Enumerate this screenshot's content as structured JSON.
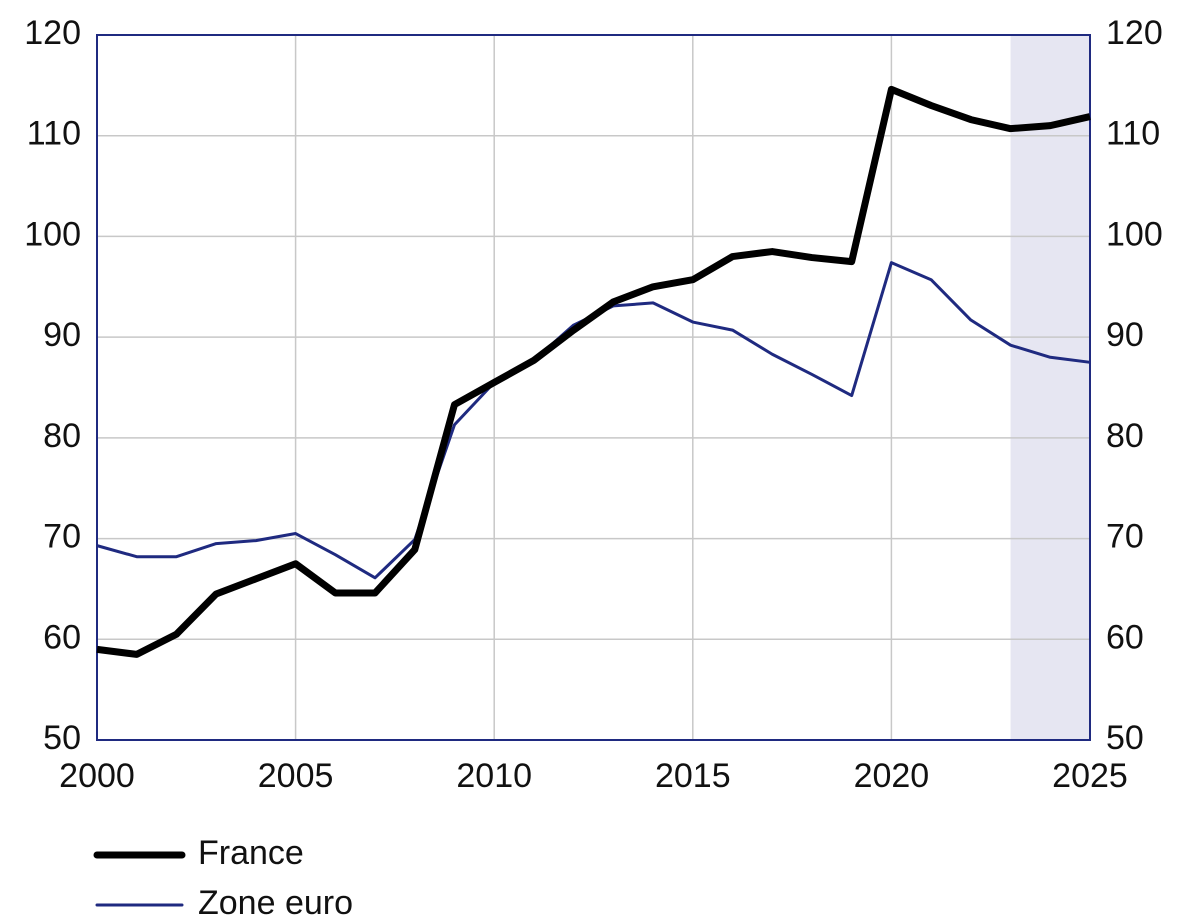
{
  "chart_data": {
    "type": "line",
    "x": [
      2000,
      2001,
      2002,
      2003,
      2004,
      2005,
      2006,
      2007,
      2008,
      2009,
      2010,
      2011,
      2012,
      2013,
      2014,
      2015,
      2016,
      2017,
      2018,
      2019,
      2020,
      2021,
      2022,
      2023,
      2024,
      2025
    ],
    "series": [
      {
        "name": "France",
        "color": "#000000",
        "width": 7,
        "values": [
          59,
          58.5,
          60.5,
          64.5,
          66,
          67.5,
          64.6,
          64.6,
          68.9,
          83.3,
          85.5,
          87.7,
          90.7,
          93.5,
          95,
          95.7,
          98,
          98.5,
          97.9,
          97.5,
          114.6,
          113,
          111.6,
          110.7,
          111,
          111.9
        ]
      },
      {
        "name": "Zone euro",
        "color": "#1f2a80",
        "width": 3,
        "values": [
          69.3,
          68.2,
          68.2,
          69.5,
          69.8,
          70.5,
          68.4,
          66.1,
          69.9,
          81.3,
          85.5,
          87.7,
          91.2,
          93.1,
          93.4,
          91.5,
          90.7,
          88.3,
          86.3,
          84.2,
          97.4,
          95.7,
          91.7,
          89.2,
          88,
          87.5
        ]
      }
    ],
    "xlim": [
      2000,
      2025
    ],
    "xticks": [
      2000,
      2005,
      2010,
      2015,
      2020,
      2025
    ],
    "ylim": [
      50,
      120
    ],
    "yticks": [
      50,
      60,
      70,
      80,
      90,
      100,
      110,
      120
    ],
    "y2lim": [
      50,
      120
    ],
    "y2ticks": [
      50,
      60,
      70,
      80,
      90,
      100,
      110,
      120
    ],
    "grid": true,
    "shade_xlim": [
      2023,
      2025
    ],
    "shade_color": "#e6e6f2",
    "frame_color": "#1f2a80"
  }
}
